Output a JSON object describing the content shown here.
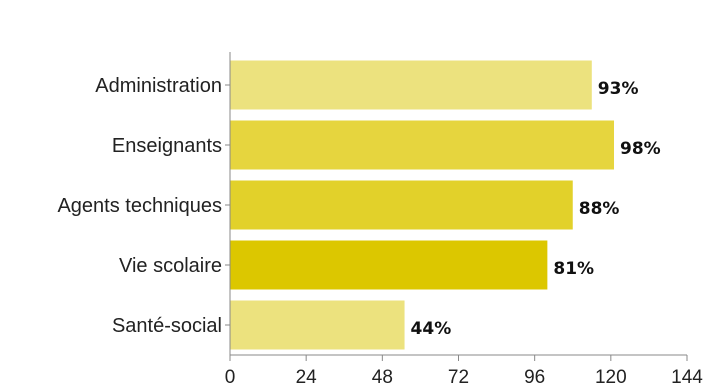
{
  "chart_data": {
    "type": "bar",
    "orientation": "horizontal",
    "categories": [
      "Administration",
      "Enseignants",
      "Agents techniques",
      "Vie scolaire",
      "Santé-social"
    ],
    "values": [
      114,
      121,
      108,
      100,
      55
    ],
    "data_labels": [
      "93%",
      "98%",
      "88%",
      "81%",
      "44%"
    ],
    "xlim": [
      0,
      144
    ],
    "xticks": [
      0,
      24,
      48,
      72,
      96,
      120,
      144
    ],
    "title": "",
    "xlabel": "",
    "ylabel": "",
    "grid": false,
    "bar_colors": [
      "#ece27e",
      "#e6d53e",
      "#e2d12a",
      "#dcc700",
      "#ece27e"
    ],
    "axis_color": "#888888"
  }
}
